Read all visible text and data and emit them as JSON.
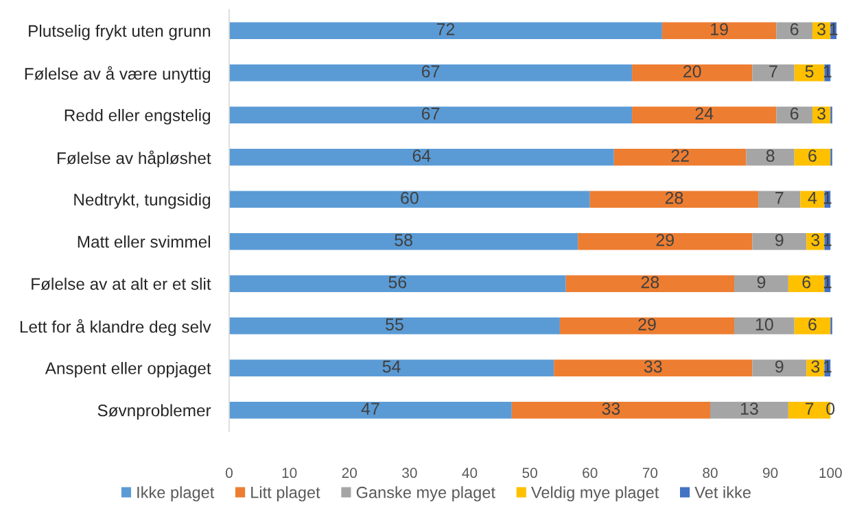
{
  "chart_data": {
    "type": "bar",
    "orientation": "horizontal",
    "stacked": true,
    "categories": [
      "Plutselig frykt uten grunn",
      "Følelse av å være unyttig",
      "Redd eller engstelig",
      "Følelse av håpløshet",
      "Nedtrykt, tungsidig",
      "Matt eller svimmel",
      "Følelse av at alt er et slit",
      "Lett for å klandre deg selv",
      "Anspent eller oppjaget",
      "Søvnproblemer"
    ],
    "series": [
      {
        "name": "Ikke plaget",
        "color": "#5b9bd5",
        "values": [
          72,
          67,
          67,
          64,
          60,
          58,
          56,
          55,
          54,
          47
        ],
        "value_labels": [
          "72",
          "67",
          "67",
          "64",
          "60",
          "58",
          "56",
          "55",
          "54",
          "47"
        ]
      },
      {
        "name": "Litt plaget",
        "color": "#ed7d31",
        "values": [
          19,
          20,
          24,
          22,
          28,
          29,
          28,
          29,
          33,
          33
        ],
        "value_labels": [
          "19",
          "20",
          "24",
          "22",
          "28",
          "29",
          "28",
          "29",
          "33",
          "33"
        ]
      },
      {
        "name": "Ganske mye plaget",
        "color": "#a5a5a5",
        "values": [
          6,
          7,
          6,
          8,
          7,
          9,
          9,
          10,
          9,
          13
        ],
        "value_labels": [
          "6",
          "7",
          "6",
          "8",
          "7",
          "9",
          "9",
          "10",
          "9",
          "13"
        ]
      },
      {
        "name": "Veldig mye plaget",
        "color": "#ffc000",
        "values": [
          3,
          5,
          3,
          6,
          4,
          3,
          6,
          6,
          3,
          7
        ],
        "value_labels": [
          "3",
          "5",
          "3",
          "6",
          "4",
          "3",
          "6",
          "6",
          "3",
          "7"
        ]
      },
      {
        "name": "Vet ikke",
        "color": "#4472c4",
        "values": [
          1,
          1,
          0.3,
          0.3,
          1,
          1,
          1,
          0.3,
          1,
          0
        ],
        "value_labels": [
          "1",
          "1",
          null,
          null,
          "1",
          "1",
          "1",
          null,
          "1",
          "0"
        ]
      }
    ],
    "xlim": [
      0,
      101
    ],
    "xticks": [
      0,
      10,
      20,
      30,
      40,
      50,
      60,
      70,
      80,
      90,
      100
    ],
    "grid": false,
    "legend": "bottom"
  }
}
